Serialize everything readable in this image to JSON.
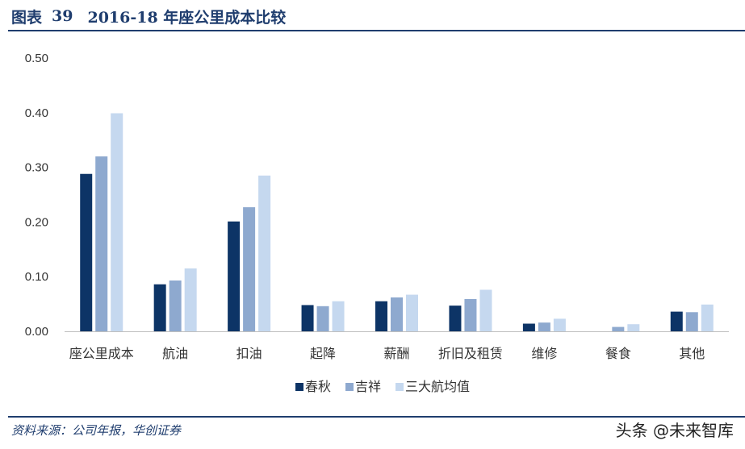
{
  "header": {
    "figure_label": "图表",
    "figure_number": "39",
    "title": "2016-18 年座公里成本比较"
  },
  "footer": {
    "source": "资料来源：公司年报，华创证券",
    "watermark": "头条 @未来智库"
  },
  "chart_data": {
    "type": "bar",
    "title": "2016-18 年座公里成本比较",
    "categories": [
      "座公里成本",
      "航油",
      "扣油",
      "起降",
      "薪酬",
      "折旧及租赁",
      "维修",
      "餐食",
      "其他"
    ],
    "series": [
      {
        "name": "春秋",
        "color": "#0d3466",
        "values": [
          0.288,
          0.086,
          0.201,
          0.048,
          0.055,
          0.047,
          0.014,
          0.0,
          0.036
        ]
      },
      {
        "name": "吉祥",
        "color": "#8ea9cf",
        "values": [
          0.32,
          0.093,
          0.227,
          0.046,
          0.062,
          0.059,
          0.016,
          0.008,
          0.035
        ]
      },
      {
        "name": "三大航均值",
        "color": "#c5d8ef",
        "values": [
          0.399,
          0.115,
          0.285,
          0.055,
          0.067,
          0.076,
          0.023,
          0.013,
          0.049
        ]
      }
    ],
    "ylim": [
      0,
      0.5
    ],
    "yticks": [
      "0.00",
      "0.10",
      "0.20",
      "0.30",
      "0.40",
      "0.50"
    ],
    "ytick_values": [
      0,
      0.1,
      0.2,
      0.3,
      0.4,
      0.5
    ],
    "grid": false,
    "legend_position": "bottom-center"
  }
}
